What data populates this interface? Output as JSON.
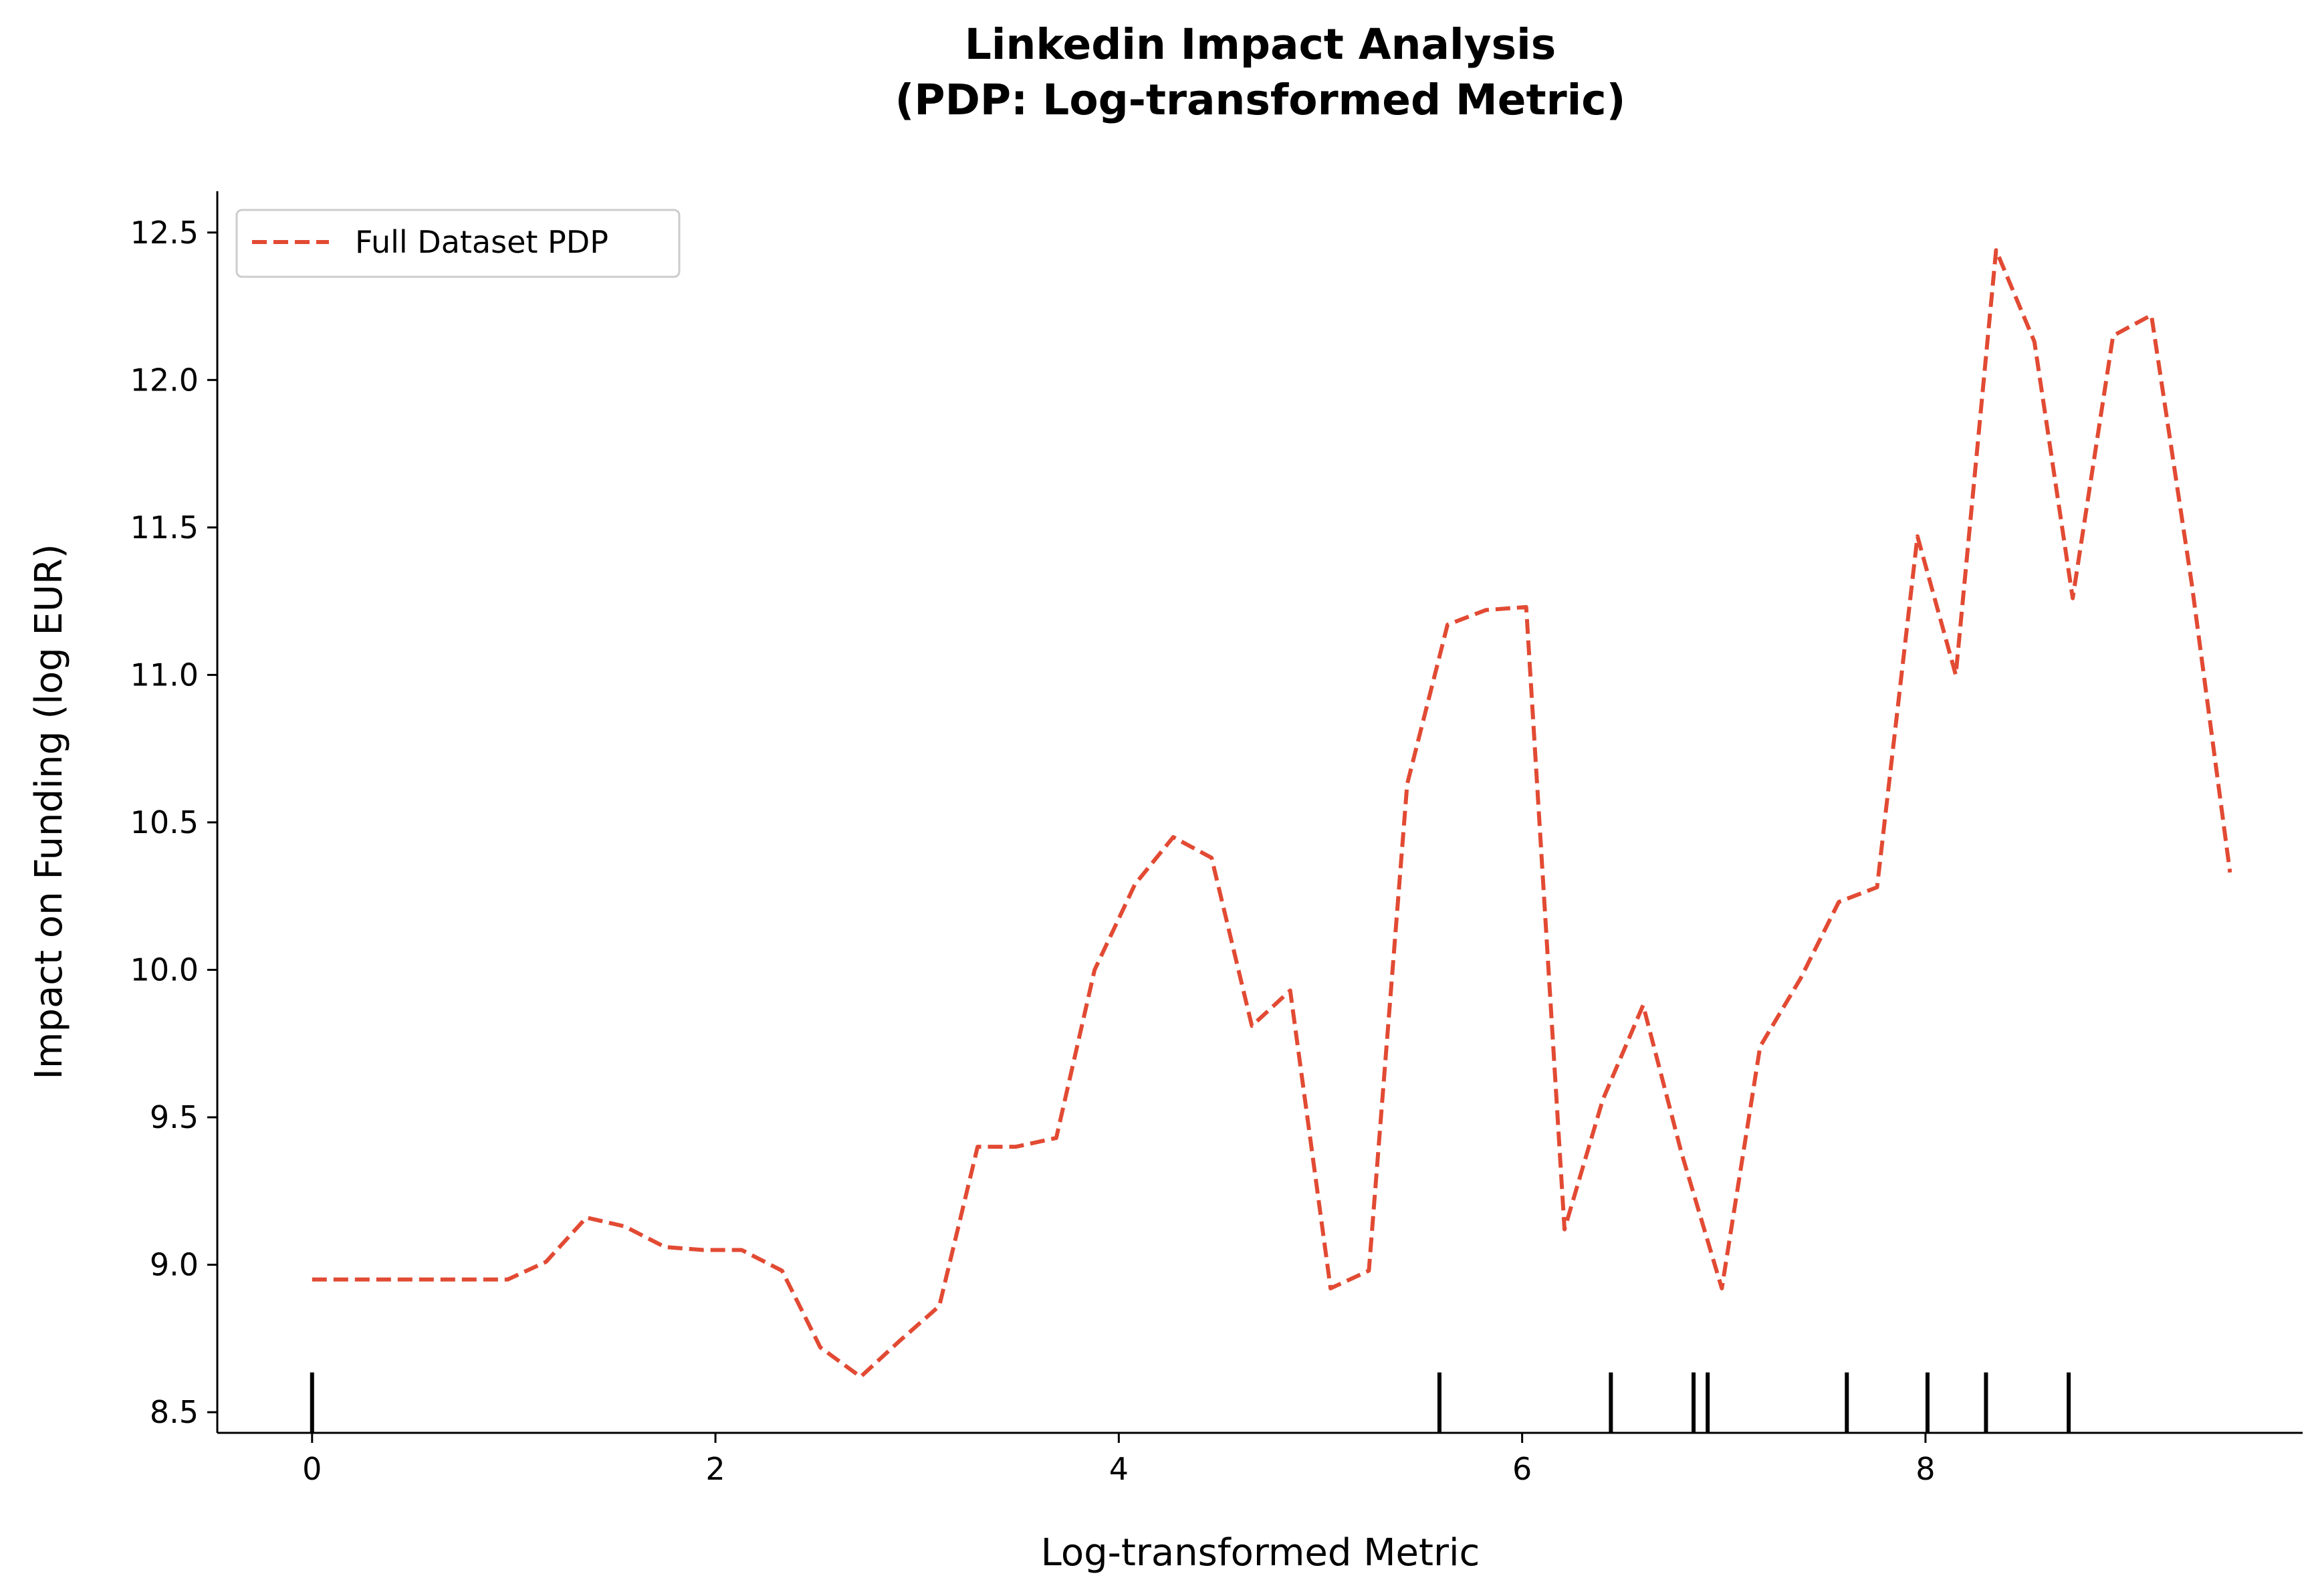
{
  "chart_data": {
    "type": "line",
    "title": "Linkedin Impact Analysis",
    "subtitle": "(PDP: Log-transformed Metric)",
    "xlabel": "Log-transformed Metric",
    "ylabel": "Impact on Funding (log EUR)",
    "xlim": [
      -0.47,
      9.87
    ],
    "ylim": [
      8.43,
      12.64
    ],
    "xticks": [
      0,
      2,
      4,
      6,
      8
    ],
    "xtick_labels": [
      "0",
      "2",
      "4",
      "6",
      "8"
    ],
    "yticks": [
      8.5,
      9.0,
      9.5,
      10.0,
      10.5,
      11.0,
      11.5,
      12.0,
      12.5
    ],
    "ytick_labels": [
      "8.5",
      "9.0",
      "9.5",
      "10.0",
      "10.5",
      "11.0",
      "11.5",
      "12.0",
      "12.5"
    ],
    "grid": false,
    "legend_position": "top-left",
    "series": [
      {
        "name": "Full Dataset PDP",
        "color": "#e24a33",
        "line_style": "dashed",
        "x": [
          0.0,
          0.19,
          0.39,
          0.58,
          0.78,
          0.97,
          1.16,
          1.36,
          1.55,
          1.75,
          1.94,
          2.13,
          2.33,
          2.52,
          2.72,
          2.91,
          3.11,
          3.3,
          3.49,
          3.69,
          3.88,
          4.08,
          4.27,
          4.46,
          4.66,
          4.85,
          5.05,
          5.24,
          5.43,
          5.63,
          5.82,
          6.02,
          6.21,
          6.4,
          6.6,
          6.79,
          6.99,
          7.18,
          7.38,
          7.57,
          7.76,
          7.96,
          8.15,
          8.35,
          8.54,
          8.73,
          8.93,
          9.12,
          9.32,
          9.51
        ],
        "values": [
          8.95,
          8.95,
          8.95,
          8.95,
          8.95,
          8.95,
          9.01,
          9.16,
          9.13,
          9.06,
          9.05,
          9.05,
          8.98,
          8.72,
          8.62,
          8.74,
          8.86,
          9.4,
          9.4,
          9.43,
          10.0,
          10.29,
          10.45,
          10.38,
          9.81,
          9.93,
          8.92,
          8.98,
          10.63,
          11.17,
          11.22,
          11.23,
          9.12,
          9.56,
          9.88,
          9.38,
          8.92,
          9.74,
          9.97,
          10.23,
          10.28,
          11.47,
          11.0,
          12.44,
          12.13,
          11.26,
          12.15,
          12.22,
          11.31,
          10.33
        ]
      }
    ],
    "rug_x": [
      0.0,
      5.59,
      6.44,
      6.85,
      6.92,
      7.61,
      8.01,
      8.3,
      8.71
    ]
  }
}
